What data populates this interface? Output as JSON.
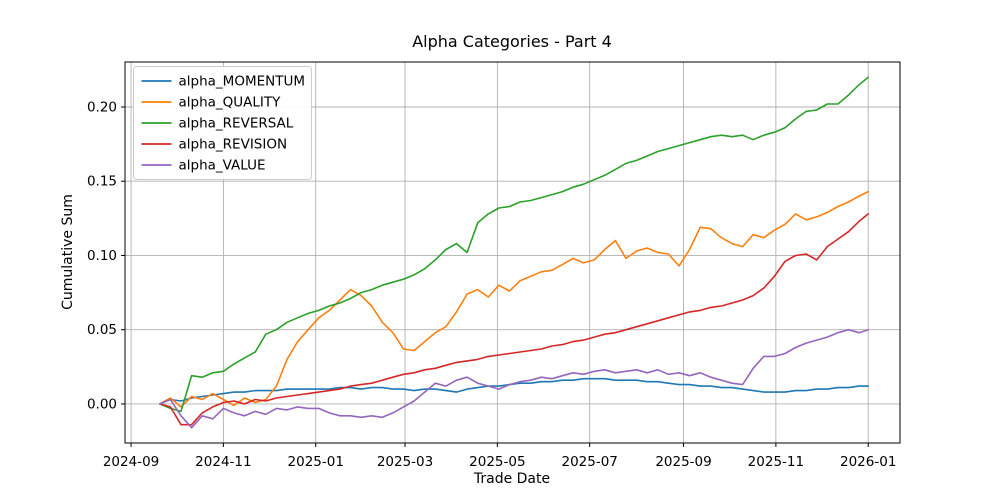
{
  "chart_data": {
    "type": "line",
    "title": "Alpha Categories - Part 4",
    "xlabel": "Trade Date",
    "ylabel": "Cumulative Sum",
    "grid": true,
    "legend_position": "upper-left",
    "xlim": [
      "2024-08-28",
      "2026-01-22"
    ],
    "ylim": [
      -0.0263,
      0.2303
    ],
    "x_ticks": [
      {
        "label": "2024-09",
        "date": "2024-09-01"
      },
      {
        "label": "2024-11",
        "date": "2024-11-01"
      },
      {
        "label": "2025-01",
        "date": "2025-01-01"
      },
      {
        "label": "2025-03",
        "date": "2025-03-01"
      },
      {
        "label": "2025-05",
        "date": "2025-05-01"
      },
      {
        "label": "2025-07",
        "date": "2025-07-01"
      },
      {
        "label": "2025-09",
        "date": "2025-09-01"
      },
      {
        "label": "2025-11",
        "date": "2025-11-01"
      },
      {
        "label": "2026-01",
        "date": "2026-01-01"
      }
    ],
    "y_ticks": [
      {
        "label": "0.00",
        "value": 0.0
      },
      {
        "label": "0.05",
        "value": 0.05
      },
      {
        "label": "0.10",
        "value": 0.1
      },
      {
        "label": "0.15",
        "value": 0.15
      },
      {
        "label": "0.20",
        "value": 0.2
      }
    ],
    "x": [
      "2024-09-20",
      "2024-09-27",
      "2024-10-04",
      "2024-10-11",
      "2024-10-18",
      "2024-10-25",
      "2024-11-01",
      "2024-11-08",
      "2024-11-15",
      "2024-11-22",
      "2024-11-29",
      "2024-12-06",
      "2024-12-13",
      "2024-12-20",
      "2024-12-27",
      "2025-01-03",
      "2025-01-10",
      "2025-01-17",
      "2025-01-24",
      "2025-01-31",
      "2025-02-07",
      "2025-02-14",
      "2025-02-21",
      "2025-02-28",
      "2025-03-07",
      "2025-03-14",
      "2025-03-21",
      "2025-03-28",
      "2025-04-04",
      "2025-04-11",
      "2025-04-18",
      "2025-04-25",
      "2025-05-02",
      "2025-05-09",
      "2025-05-16",
      "2025-05-23",
      "2025-05-30",
      "2025-06-06",
      "2025-06-13",
      "2025-06-20",
      "2025-06-27",
      "2025-07-04",
      "2025-07-11",
      "2025-07-18",
      "2025-07-25",
      "2025-08-01",
      "2025-08-08",
      "2025-08-15",
      "2025-08-22",
      "2025-08-29",
      "2025-09-05",
      "2025-09-12",
      "2025-09-19",
      "2025-09-26",
      "2025-10-03",
      "2025-10-10",
      "2025-10-17",
      "2025-10-24",
      "2025-10-31",
      "2025-11-07",
      "2025-11-14",
      "2025-11-21",
      "2025-11-28",
      "2025-12-05",
      "2025-12-12",
      "2025-12-19",
      "2025-12-26",
      "2026-01-01"
    ],
    "series": [
      {
        "name": "alpha_MOMENTUM",
        "color": "#1f77b4",
        "values": [
          0.0,
          0.003,
          0.002,
          0.004,
          0.005,
          0.006,
          0.007,
          0.008,
          0.008,
          0.009,
          0.009,
          0.009,
          0.01,
          0.01,
          0.01,
          0.01,
          0.01,
          0.011,
          0.011,
          0.01,
          0.011,
          0.011,
          0.01,
          0.01,
          0.009,
          0.01,
          0.01,
          0.009,
          0.008,
          0.01,
          0.011,
          0.012,
          0.012,
          0.013,
          0.014,
          0.014,
          0.015,
          0.015,
          0.016,
          0.016,
          0.017,
          0.017,
          0.017,
          0.016,
          0.016,
          0.016,
          0.015,
          0.015,
          0.014,
          0.013,
          0.013,
          0.012,
          0.012,
          0.011,
          0.011,
          0.01,
          0.009,
          0.008,
          0.008,
          0.008,
          0.009,
          0.009,
          0.01,
          0.01,
          0.011,
          0.011,
          0.012,
          0.012
        ]
      },
      {
        "name": "alpha_QUALITY",
        "color": "#ff7f0e",
        "values": [
          0.0,
          0.004,
          -0.002,
          0.005,
          0.003,
          0.007,
          0.003,
          -0.001,
          0.004,
          0.001,
          0.003,
          0.012,
          0.03,
          0.042,
          0.05,
          0.058,
          0.063,
          0.07,
          0.077,
          0.073,
          0.066,
          0.055,
          0.048,
          0.037,
          0.036,
          0.042,
          0.048,
          0.052,
          0.062,
          0.074,
          0.077,
          0.072,
          0.08,
          0.076,
          0.083,
          0.086,
          0.089,
          0.09,
          0.094,
          0.098,
          0.095,
          0.097,
          0.104,
          0.11,
          0.098,
          0.103,
          0.105,
          0.102,
          0.101,
          0.093,
          0.104,
          0.119,
          0.118,
          0.112,
          0.108,
          0.106,
          0.114,
          0.112,
          0.117,
          0.121,
          0.128,
          0.124,
          0.126,
          0.129,
          0.133,
          0.136,
          0.14,
          0.143
        ]
      },
      {
        "name": "alpha_REVERSAL",
        "color": "#2ca02c",
        "values": [
          0.0,
          -0.003,
          -0.005,
          0.019,
          0.018,
          0.021,
          0.022,
          0.027,
          0.031,
          0.035,
          0.047,
          0.05,
          0.055,
          0.058,
          0.061,
          0.063,
          0.066,
          0.068,
          0.071,
          0.075,
          0.077,
          0.08,
          0.082,
          0.084,
          0.087,
          0.091,
          0.097,
          0.104,
          0.108,
          0.102,
          0.122,
          0.128,
          0.132,
          0.133,
          0.136,
          0.137,
          0.139,
          0.141,
          0.143,
          0.146,
          0.148,
          0.151,
          0.154,
          0.158,
          0.162,
          0.164,
          0.167,
          0.17,
          0.172,
          0.174,
          0.176,
          0.178,
          0.18,
          0.181,
          0.18,
          0.181,
          0.178,
          0.181,
          0.183,
          0.186,
          0.192,
          0.197,
          0.198,
          0.202,
          0.202,
          0.208,
          0.215,
          0.22
        ]
      },
      {
        "name": "alpha_REVISION",
        "color": "#d62728",
        "values": [
          0.0,
          -0.002,
          -0.014,
          -0.014,
          -0.006,
          -0.002,
          0.001,
          0.002,
          0.0,
          0.003,
          0.002,
          0.004,
          0.005,
          0.006,
          0.007,
          0.008,
          0.009,
          0.01,
          0.012,
          0.013,
          0.014,
          0.016,
          0.018,
          0.02,
          0.021,
          0.023,
          0.024,
          0.026,
          0.028,
          0.029,
          0.03,
          0.032,
          0.033,
          0.034,
          0.035,
          0.036,
          0.037,
          0.039,
          0.04,
          0.042,
          0.043,
          0.045,
          0.047,
          0.048,
          0.05,
          0.052,
          0.054,
          0.056,
          0.058,
          0.06,
          0.062,
          0.063,
          0.065,
          0.066,
          0.068,
          0.07,
          0.073,
          0.078,
          0.086,
          0.096,
          0.1,
          0.101,
          0.097,
          0.106,
          0.111,
          0.116,
          0.123,
          0.128
        ]
      },
      {
        "name": "alpha_VALUE",
        "color": "#9467bd",
        "values": [
          0.0,
          0.003,
          -0.008,
          -0.016,
          -0.008,
          -0.01,
          -0.003,
          -0.006,
          -0.008,
          -0.005,
          -0.007,
          -0.003,
          -0.004,
          -0.002,
          -0.003,
          -0.003,
          -0.006,
          -0.008,
          -0.008,
          -0.009,
          -0.008,
          -0.009,
          -0.006,
          -0.002,
          0.002,
          0.008,
          0.014,
          0.012,
          0.016,
          0.018,
          0.014,
          0.012,
          0.01,
          0.013,
          0.015,
          0.016,
          0.018,
          0.017,
          0.019,
          0.021,
          0.02,
          0.022,
          0.023,
          0.021,
          0.022,
          0.023,
          0.021,
          0.023,
          0.02,
          0.021,
          0.019,
          0.021,
          0.018,
          0.016,
          0.014,
          0.013,
          0.024,
          0.032,
          0.032,
          0.034,
          0.038,
          0.041,
          0.043,
          0.045,
          0.048,
          0.05,
          0.048,
          0.05
        ]
      }
    ],
    "style": {
      "background": "#ffffff",
      "grid_color": "#b0b0b0",
      "spine_color": "#000000",
      "text_color": "#000000",
      "legend_border_color": "#cccccc",
      "legend_background": "#ffffff"
    }
  }
}
